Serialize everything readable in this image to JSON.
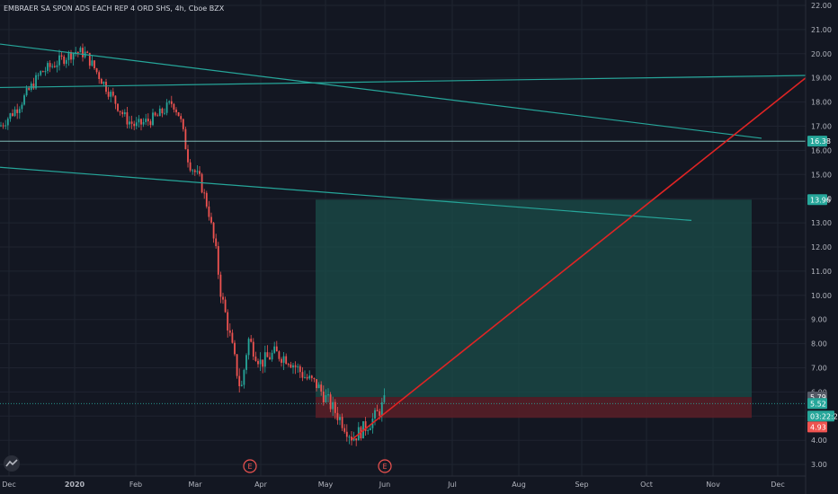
{
  "header": {
    "title": "EMBRAER SA SPON ADS EACH REP 4 ORD SHS, 4h, Cboe BZX"
  },
  "colors": {
    "background": "#131722",
    "grid": "#1f2430",
    "axis_text": "#b2b5be",
    "trendline": "#26a69a",
    "red_line": "#e02424",
    "candle_up": "#26a69a",
    "candle_down": "#ef5350",
    "target_zone": "#1b4d49",
    "stop_zone": "#5a1f27"
  },
  "chart_data": {
    "type": "candlestick",
    "x_axis": {
      "tick_labels": [
        "Dec",
        "2020",
        "Feb",
        "Mar",
        "Apr",
        "May",
        "Jun",
        "Jul",
        "Aug",
        "Sep",
        "Oct",
        "Nov",
        "Dec"
      ]
    },
    "y_axis": {
      "range": [
        2.5,
        22.3
      ],
      "tick_labels": [
        "22.00",
        "21.00",
        "20.00",
        "19.00",
        "18.00",
        "17.00",
        "16.00",
        "15.00",
        "14.00",
        "13.00",
        "12.00",
        "11.00",
        "10.00",
        "9.00",
        "8.00",
        "7.00",
        "6.00",
        "5.00",
        "4.00",
        "3.00"
      ]
    },
    "price_series_approx": [
      {
        "month": "Dec",
        "close": 17.0
      },
      {
        "month": "2020",
        "close": 20.0
      },
      {
        "month": "Feb",
        "close": 17.0
      },
      {
        "month": "late Feb",
        "close": 17.8
      },
      {
        "month": "Mar",
        "close": 11.8
      },
      {
        "month": "early Mar",
        "close": 10.0
      },
      {
        "month": "mid Mar",
        "close": 6.0
      },
      {
        "month": "Apr",
        "close": 7.5
      },
      {
        "month": "early May",
        "close": 6.5
      },
      {
        "month": "mid May",
        "close": 4.1
      },
      {
        "month": "Jun",
        "close": 5.79
      }
    ],
    "drawings": {
      "trendlines": [
        {
          "from": {
            "x": "Dec",
            "y": 20.4
          },
          "to": {
            "x": "Nov",
            "y": 16.5
          }
        },
        {
          "from": {
            "x": "Dec",
            "y": 18.6
          },
          "to": {
            "x": "Dec",
            "y": 19.1
          }
        },
        {
          "from": {
            "x": "Dec",
            "y": 15.3
          },
          "to": {
            "x": "Oct",
            "y": 13.1
          }
        }
      ],
      "red_line": {
        "from": {
          "x": "May",
          "y": 4.05
        },
        "to": {
          "x": "Dec",
          "y": 19.0
        }
      },
      "horizontal_line": 16.38,
      "target_zone": {
        "from_x": "May",
        "to_x": "Nov",
        "top": 13.96,
        "bottom": 5.79
      },
      "stop_zone": {
        "from_x": "May",
        "to_x": "Nov",
        "top": 5.79,
        "bottom": 4.93
      }
    },
    "price_labels": [
      {
        "value": "16.38",
        "color": "#26a69a"
      },
      {
        "value": "13.96",
        "color": "#26a69a"
      },
      {
        "value": "5.79",
        "color": "#555a66"
      },
      {
        "value": "5.52",
        "color": "#26a69a"
      },
      {
        "value": "03:22:25",
        "color": "#26a69a"
      },
      {
        "value": "4.93",
        "color": "#ef5350"
      }
    ],
    "earnings_markers": [
      {
        "x": "late Mar",
        "label": "E"
      },
      {
        "x": "Jun",
        "label": "E"
      }
    ]
  }
}
